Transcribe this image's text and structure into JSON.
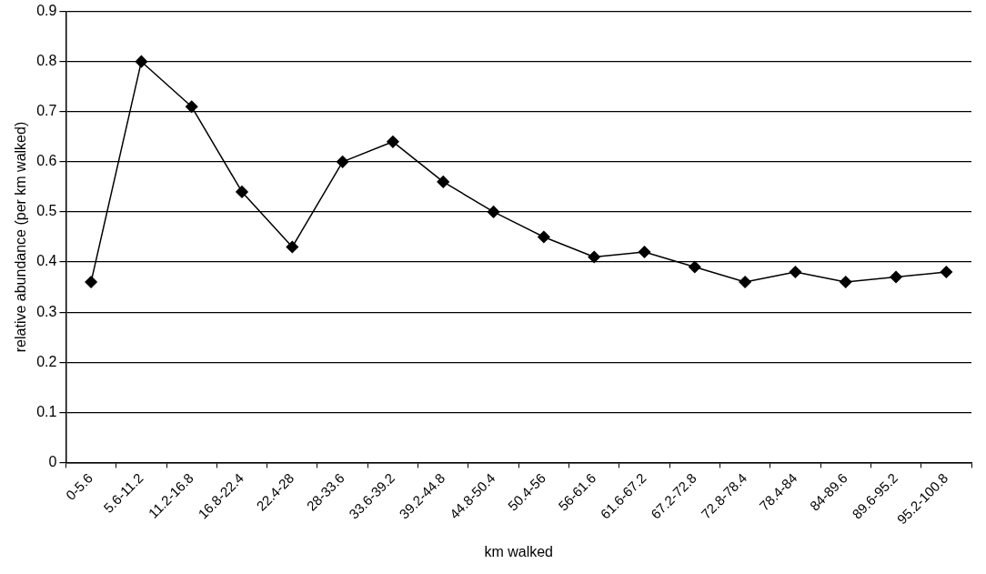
{
  "chart_data": {
    "type": "line",
    "xlabel": "km walked",
    "ylabel": "relative abundance (per km walked)",
    "categories": [
      "0-5.6",
      "5.6-11.2",
      "11.2-16.8",
      "16.8-22.4",
      "22.4-28",
      "28-33.6",
      "33.6-39.2",
      "39.2-44.8",
      "44.8-50.4",
      "50.4-56",
      "56-61.6",
      "61.6-67.2",
      "67.2-72.8",
      "72.8-78.4",
      "78.4-84",
      "84-89.6",
      "89.6-95.2",
      "95.2-100.8"
    ],
    "series": [
      {
        "color": "#000000",
        "values": [
          0.36,
          0.8,
          0.71,
          0.54,
          0.43,
          0.6,
          0.64,
          0.56,
          0.5,
          0.45,
          0.41,
          0.42,
          0.39,
          0.36,
          0.38,
          0.36,
          0.37,
          0.38
        ]
      }
    ],
    "ylim": [
      0,
      0.9
    ],
    "yticks": [
      0,
      0.1,
      0.2,
      0.3,
      0.4,
      0.5,
      0.6,
      0.7,
      0.8,
      0.9
    ],
    "grid": "y",
    "legend": false,
    "marker": "diamond",
    "line_style": "solid"
  }
}
